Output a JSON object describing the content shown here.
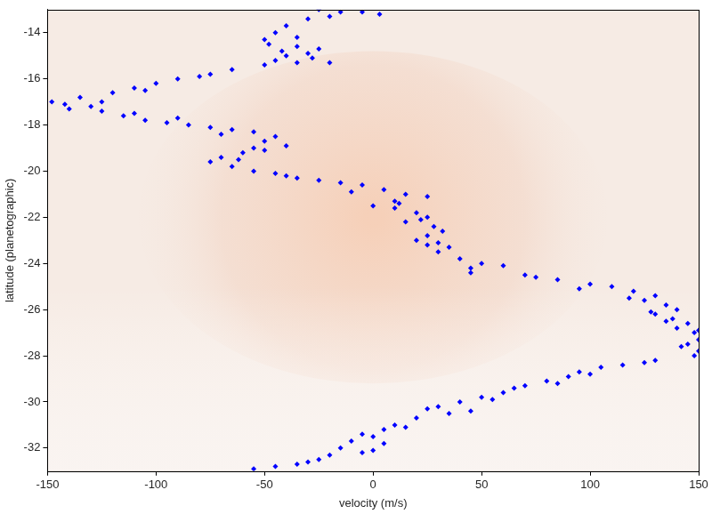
{
  "chart_data": {
    "type": "scatter",
    "x_label": "velocity (m/s)",
    "y_label": "latitude (planetographic)",
    "x": [
      -25,
      -15,
      -5,
      3,
      -30,
      -40,
      -45,
      -50,
      -48,
      -35,
      -25,
      -30,
      -40,
      -28,
      -20,
      -35,
      -50,
      -65,
      -75,
      -90,
      -100,
      -110,
      -120,
      -135,
      -148,
      -142,
      -130,
      -140,
      -125,
      -115,
      -105,
      -95,
      -85,
      -75,
      -65,
      -55,
      -45,
      -50,
      -40,
      -55,
      -60,
      -70,
      -75,
      -65,
      -55,
      -45,
      -35,
      -25,
      -15,
      -5,
      5,
      15,
      25,
      10,
      0,
      10,
      20,
      25,
      15,
      28,
      32,
      25,
      20,
      25,
      35,
      30,
      40,
      50,
      60,
      45,
      70,
      85,
      100,
      110,
      120,
      130,
      125,
      135,
      140,
      130,
      138,
      145,
      140,
      148,
      150,
      145,
      150,
      148,
      130,
      115,
      105,
      95,
      90,
      80,
      70,
      60,
      50,
      40,
      30,
      45,
      35,
      20,
      10,
      5,
      0,
      -10,
      5,
      -15,
      -5,
      -20,
      -25,
      -35,
      -45,
      -55,
      -20,
      -35,
      -42,
      -45,
      -80,
      -105,
      -125,
      -110,
      -90,
      -70,
      -50,
      -62,
      -40,
      -10,
      12,
      22,
      30,
      45,
      75,
      95,
      118,
      128,
      135,
      150,
      142,
      125,
      100,
      85,
      65,
      55,
      25,
      15,
      -5,
      0,
      -30
    ],
    "values": [
      -13.0,
      -13.1,
      -13.1,
      -13.2,
      -13.4,
      -13.7,
      -14.0,
      -14.3,
      -14.5,
      -14.6,
      -14.7,
      -14.9,
      -15.0,
      -15.1,
      -15.3,
      -15.3,
      -15.4,
      -15.6,
      -15.8,
      -16.0,
      -16.2,
      -16.4,
      -16.6,
      -16.8,
      -17.0,
      -17.1,
      -17.2,
      -17.3,
      -17.4,
      -17.6,
      -17.8,
      -17.9,
      -18.0,
      -18.1,
      -18.2,
      -18.3,
      -18.5,
      -18.7,
      -18.9,
      -19.0,
      -19.2,
      -19.4,
      -19.6,
      -19.8,
      -20.0,
      -20.1,
      -20.3,
      -20.4,
      -20.5,
      -20.6,
      -20.8,
      -21.0,
      -21.1,
      -21.3,
      -21.5,
      -21.6,
      -21.8,
      -22.0,
      -22.2,
      -22.4,
      -22.6,
      -22.8,
      -23.0,
      -23.2,
      -23.3,
      -23.5,
      -23.8,
      -24.0,
      -24.1,
      -24.2,
      -24.5,
      -24.7,
      -24.9,
      -25.0,
      -25.2,
      -25.4,
      -25.6,
      -25.8,
      -26.0,
      -26.2,
      -26.4,
      -26.6,
      -26.8,
      -27.0,
      -27.3,
      -27.5,
      -27.8,
      -28.0,
      -28.2,
      -28.4,
      -28.5,
      -28.7,
      -28.9,
      -29.1,
      -29.3,
      -29.6,
      -29.8,
      -30.0,
      -30.2,
      -30.4,
      -30.5,
      -30.7,
      -31.0,
      -31.2,
      -31.5,
      -31.7,
      -31.8,
      -32.0,
      -32.2,
      -32.3,
      -32.5,
      -32.7,
      -32.8,
      -32.9,
      -13.3,
      -14.2,
      -14.8,
      -15.2,
      -15.9,
      -16.5,
      -17.0,
      -17.5,
      -17.7,
      -18.4,
      -19.1,
      -19.5,
      -20.2,
      -20.9,
      -21.4,
      -22.1,
      -23.1,
      -24.4,
      -24.6,
      -25.1,
      -25.5,
      -26.1,
      -26.5,
      -26.9,
      -27.6,
      -28.3,
      -28.8,
      -29.2,
      -29.4,
      -29.9,
      -30.3,
      -31.1,
      -31.4,
      -32.1,
      -32.6
    ],
    "color": "#0000ff",
    "marker": "diamond",
    "xlim": [
      -150,
      150
    ],
    "xticks": [
      -150,
      -100,
      -50,
      0,
      50,
      100,
      150
    ],
    "ylim": [
      -33,
      -13
    ],
    "yticks": [
      -32,
      -30,
      -28,
      -26,
      -24,
      -22,
      -20,
      -18,
      -16,
      -14
    ],
    "grid": false,
    "legend": false
  }
}
